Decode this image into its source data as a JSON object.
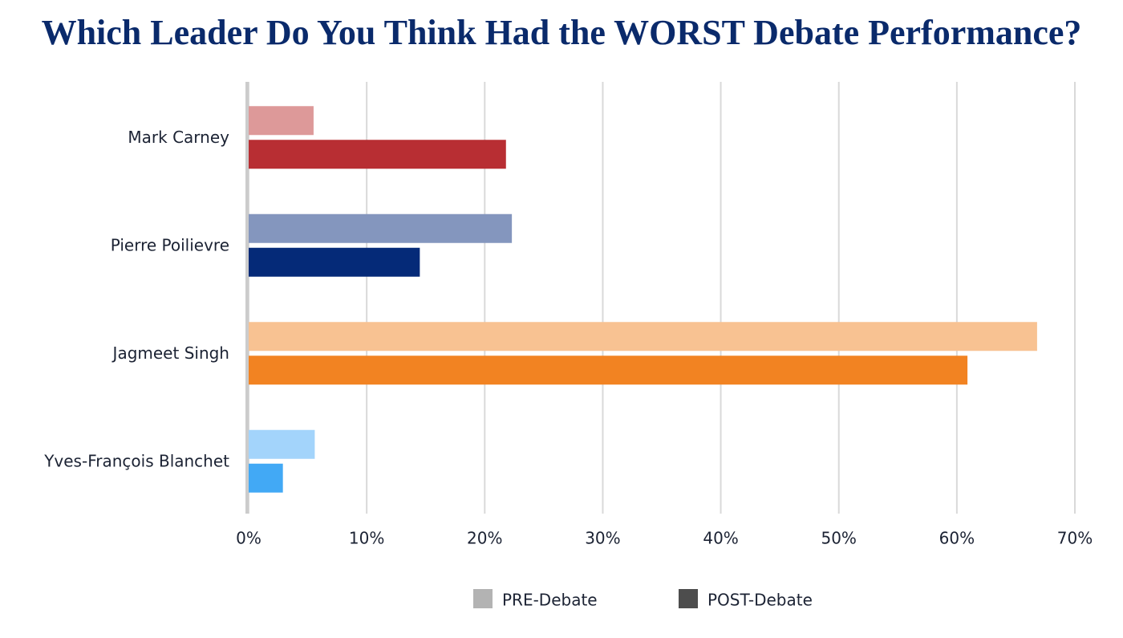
{
  "chart_data": {
    "type": "hbar",
    "title": "Which Leader Do You Think Had the WORST Debate Performance?",
    "categories": [
      "Mark Carney",
      "Pierre Poilievre",
      "Jagmeet Singh",
      "Yves-François Blanchet"
    ],
    "series": [
      {
        "name": "PRE-Debate",
        "color": "#b3b3b3",
        "colors": [
          "#dd9999",
          "#8496be",
          "#f8c292",
          "#a3d4fb"
        ],
        "values": [
          5.5,
          22.3,
          66.8,
          5.6
        ]
      },
      {
        "name": "POST-Debate",
        "color": "#4d4d4d",
        "colors": [
          "#b82e33",
          "#052a78",
          "#f28322",
          "#42a9f5"
        ],
        "values": [
          21.8,
          14.5,
          60.9,
          2.9
        ]
      }
    ],
    "xlim": [
      0,
      70
    ],
    "xticks": [
      {
        "value": 0,
        "label": "0%"
      },
      {
        "value": 10,
        "label": "10%"
      },
      {
        "value": 20,
        "label": "20%"
      },
      {
        "value": 30,
        "label": "30%"
      },
      {
        "value": 40,
        "label": "40%"
      },
      {
        "value": 50,
        "label": "50%"
      },
      {
        "value": 60,
        "label": "60%"
      },
      {
        "value": 70,
        "label": "70%"
      }
    ],
    "grid": true
  }
}
